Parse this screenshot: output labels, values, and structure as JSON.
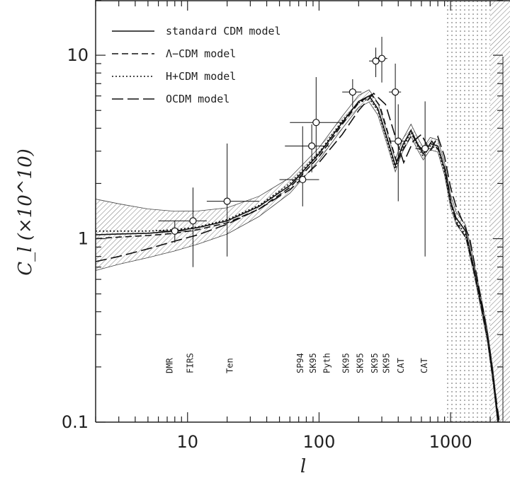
{
  "chart_data": {
    "type": "line",
    "x_scale": "log",
    "y_scale": "log",
    "xlim": [
      2,
      2500
    ],
    "ylim": [
      0.1,
      20
    ],
    "xlabel": "l",
    "ylabel": "C_l (×10^10)",
    "x_ticks": [
      {
        "value": 10,
        "label": "10"
      },
      {
        "value": 100,
        "label": "100"
      },
      {
        "value": 1000,
        "label": "1000"
      }
    ],
    "y_ticks": [
      {
        "value": 0.1,
        "label": "0.1"
      },
      {
        "value": 1,
        "label": "1"
      },
      {
        "value": 10,
        "label": "10"
      }
    ],
    "legend_position": "top-left",
    "legend": [
      {
        "label": "standard CDM model",
        "style": "solid"
      },
      {
        "label": "Λ−CDM model",
        "style": "dashed"
      },
      {
        "label": "H+CDM model",
        "style": "dotted"
      },
      {
        "label": "OCDM model",
        "style": "longdash"
      }
    ],
    "series": [
      {
        "name": "standard CDM model",
        "style": "solid",
        "x": [
          2,
          3,
          5,
          8,
          12,
          20,
          35,
          60,
          100,
          150,
          200,
          240,
          280,
          330,
          380,
          430,
          500,
          560,
          620,
          700,
          800,
          900,
          1000,
          1100,
          1300,
          1500,
          1700,
          1900,
          2100,
          2300
        ],
        "y": [
          1.05,
          1.06,
          1.07,
          1.1,
          1.15,
          1.25,
          1.5,
          1.95,
          2.9,
          4.3,
          5.6,
          6.0,
          5.1,
          3.5,
          2.5,
          3.2,
          3.9,
          3.3,
          2.9,
          3.3,
          3.2,
          2.4,
          1.6,
          1.3,
          1.1,
          0.7,
          0.45,
          0.3,
          0.18,
          0.1
        ]
      },
      {
        "name": "Λ−CDM model",
        "style": "dashed",
        "x": [
          2,
          3,
          5,
          8,
          12,
          20,
          35,
          60,
          100,
          150,
          200,
          250,
          290,
          340,
          390,
          440,
          510,
          570,
          640,
          720,
          820,
          920,
          1020,
          1120,
          1320,
          1520,
          1720,
          1920,
          2120,
          2320
        ],
        "y": [
          1.0,
          1.02,
          1.04,
          1.07,
          1.12,
          1.22,
          1.45,
          1.9,
          2.8,
          4.2,
          5.5,
          6.1,
          5.3,
          3.6,
          2.6,
          3.1,
          3.7,
          3.2,
          3.0,
          3.4,
          3.0,
          2.3,
          1.5,
          1.2,
          1.0,
          0.65,
          0.42,
          0.28,
          0.16,
          0.1
        ]
      },
      {
        "name": "H+CDM model",
        "style": "dotted",
        "x": [
          2,
          3,
          5,
          8,
          12,
          20,
          35,
          60,
          100,
          150,
          200,
          240,
          280,
          330,
          380,
          430,
          500,
          560,
          620,
          700,
          800,
          900,
          1000,
          1100,
          1300,
          1500,
          1700,
          1900,
          2100,
          2300
        ],
        "y": [
          1.1,
          1.1,
          1.1,
          1.12,
          1.16,
          1.27,
          1.52,
          2.0,
          2.95,
          4.4,
          5.5,
          5.8,
          5.0,
          3.4,
          2.4,
          3.1,
          3.8,
          3.2,
          2.8,
          3.2,
          3.1,
          2.3,
          1.55,
          1.25,
          1.05,
          0.68,
          0.44,
          0.29,
          0.17,
          0.1
        ]
      },
      {
        "name": "OCDM model",
        "style": "longdash",
        "x": [
          2,
          3,
          5,
          8,
          12,
          20,
          35,
          60,
          100,
          150,
          200,
          260,
          320,
          380,
          440,
          520,
          600,
          700,
          800,
          900,
          1000,
          1100,
          1200,
          1400,
          1600,
          1800,
          2000,
          2200,
          2400
        ],
        "y": [
          0.75,
          0.8,
          0.88,
          0.97,
          1.05,
          1.2,
          1.45,
          1.85,
          2.6,
          3.7,
          5.0,
          6.2,
          5.4,
          3.6,
          2.6,
          3.4,
          3.7,
          3.0,
          3.6,
          2.8,
          1.9,
          1.5,
          1.3,
          1.0,
          0.6,
          0.38,
          0.24,
          0.14,
          0.09
        ]
      }
    ],
    "data_points": [
      {
        "x": 8,
        "y": 1.1,
        "x_err": [
          6,
          11
        ],
        "y_err": [
          0.95,
          1.25
        ],
        "label": "DMR"
      },
      {
        "x": 11,
        "y": 1.25,
        "x_err": [
          6,
          14
        ],
        "y_err": [
          0.7,
          1.9
        ],
        "label": "FIRS"
      },
      {
        "x": 20,
        "y": 1.6,
        "x_err": [
          14,
          35
        ],
        "y_err": [
          0.8,
          3.3
        ],
        "label": "Ten"
      },
      {
        "x": 75,
        "y": 2.1,
        "x_err": [
          50,
          100
        ],
        "y_err": [
          1.5,
          4.1
        ],
        "label": "SP94"
      },
      {
        "x": 88,
        "y": 3.2,
        "x_err": [
          55,
          120
        ],
        "y_err": [
          2.3,
          4.2
        ],
        "label": "SK95"
      },
      {
        "x": 95,
        "y": 4.3,
        "x_err": [
          60,
          150
        ],
        "y_err": [
          2.7,
          7.6
        ],
        "label": "Pyth"
      },
      {
        "x": 180,
        "y": 6.3,
        "x_err": [
          150,
          210
        ],
        "y_err": [
          5.2,
          7.4
        ],
        "label": "SK95"
      },
      {
        "x": 270,
        "y": 9.3,
        "x_err": [
          240,
          300
        ],
        "y_err": [
          7.6,
          11.0
        ],
        "label": "SK95"
      },
      {
        "x": 300,
        "y": 9.6,
        "x_err": [
          270,
          330
        ],
        "y_err": [
          7.1,
          12.6
        ],
        "label": "SK95"
      },
      {
        "x": 380,
        "y": 6.3,
        "x_err": [
          340,
          420
        ],
        "y_err": [
          3.5,
          9.0
        ],
        "label": null
      },
      {
        "x": 400,
        "y": 3.4,
        "x_err": [
          340,
          450
        ],
        "y_err": [
          1.6,
          5.4
        ],
        "label": "CAT"
      },
      {
        "x": 640,
        "y": 3.1,
        "x_err": [
          540,
          730
        ],
        "y_err": [
          0.8,
          5.6
        ],
        "label": "CAT"
      }
    ],
    "experiment_labels": [
      {
        "x": 7.3,
        "text": "DMR"
      },
      {
        "x": 10.5,
        "text": "FIRS"
      },
      {
        "x": 21,
        "text": "Ten"
      },
      {
        "x": 72,
        "text": "SP94"
      },
      {
        "x": 90,
        "text": "SK95"
      },
      {
        "x": 115,
        "text": "Pyth"
      },
      {
        "x": 160,
        "text": "SK95"
      },
      {
        "x": 205,
        "text": "SK95"
      },
      {
        "x": 265,
        "text": "SK95"
      },
      {
        "x": 325,
        "text": "SK95"
      },
      {
        "x": 420,
        "text": "CAT"
      },
      {
        "x": 630,
        "text": "CAT"
      }
    ]
  }
}
